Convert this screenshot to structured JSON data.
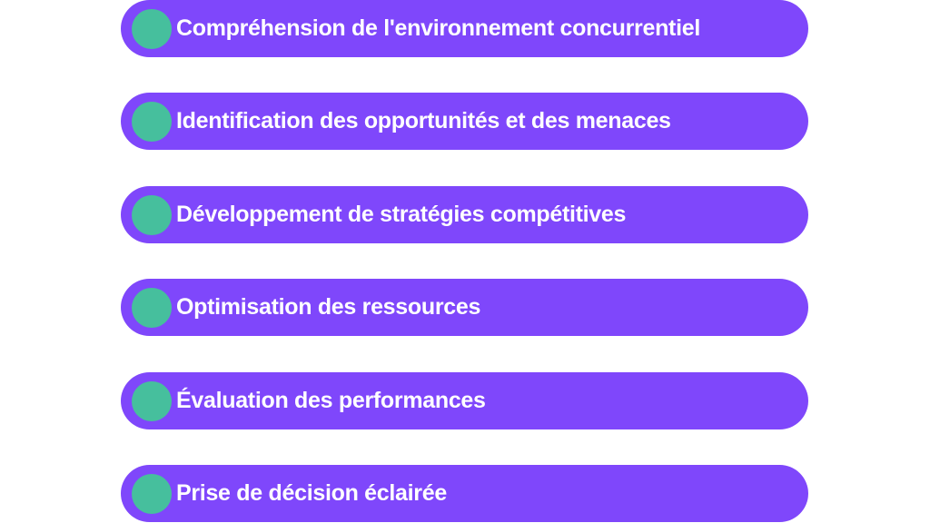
{
  "colors": {
    "pill": "#7f47fb",
    "bullet": "#46bf9d",
    "text": "#ffffff"
  },
  "items": [
    {
      "label": "Compréhension de l'environnement concurrentiel"
    },
    {
      "label": "Identification des opportunités et des menaces"
    },
    {
      "label": "Développement de stratégies compétitives"
    },
    {
      "label": "Optimisation des ressources"
    },
    {
      "label": "Évaluation des performances"
    },
    {
      "label": "Prise de décision éclairée"
    }
  ]
}
